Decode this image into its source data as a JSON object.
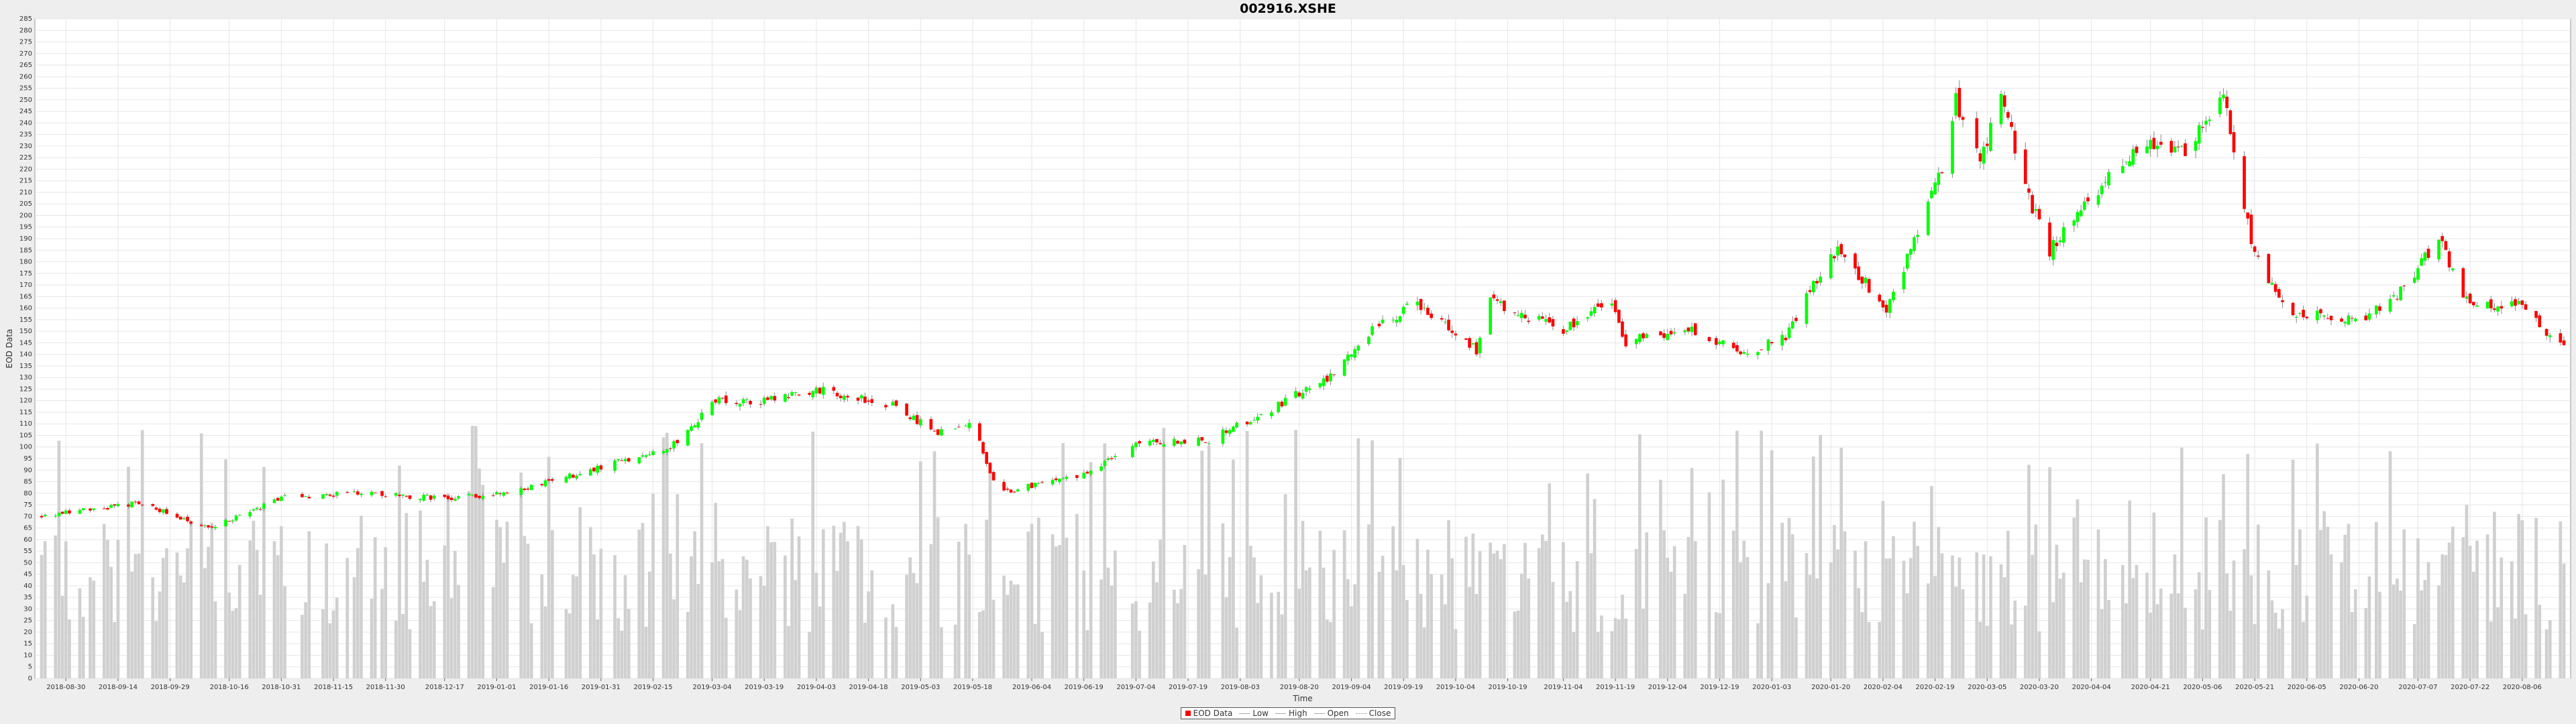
{
  "chart_data": {
    "type": "candlestick",
    "title": "002916.XSHE",
    "xlabel": "Time",
    "ylabel": "EOD Data",
    "ylim": [
      0,
      285
    ],
    "y_tick_step": 5,
    "volume_bars": "grey bars, share EOD Data axis",
    "grid": true,
    "legend_position": "bottom-center",
    "colors": {
      "up": "#00ff00",
      "down": "#ff0000",
      "volume": "#d0d0d0",
      "grid": "#e6e6e6",
      "plot_bg": "#ffffff"
    },
    "x_tick_labels": [
      "2018-08-30",
      "2018-09-14",
      "2018-09-29",
      "2018-10-16",
      "2018-10-31",
      "2018-11-15",
      "2018-11-30",
      "2018-12-17",
      "2019-01-01",
      "2019-01-16",
      "2019-01-31",
      "2019-02-15",
      "2019-03-04",
      "2019-03-19",
      "2019-04-03",
      "2019-04-18",
      "2019-05-03",
      "2019-05-18",
      "2019-06-04",
      "2019-06-19",
      "2019-07-04",
      "2019-07-19",
      "2019-08-03",
      "2019-08-20",
      "2019-09-04",
      "2019-09-19",
      "2019-10-04",
      "2019-10-19",
      "2019-11-04",
      "2019-11-19",
      "2019-12-04",
      "2019-12-19",
      "2020-01-03",
      "2020-01-20",
      "2020-02-04",
      "2020-02-19",
      "2020-03-05",
      "2020-03-20",
      "2020-04-04",
      "2020-04-21",
      "2020-05-06",
      "2020-05-21",
      "2020-06-05",
      "2020-06-20",
      "2020-07-07",
      "2020-07-22",
      "2020-08-06"
    ],
    "date_range": [
      "2018-08-23",
      "2020-08-18"
    ],
    "key_close_points": [
      {
        "x": "2018-08-23",
        "y": 70
      },
      {
        "x": "2018-09-20",
        "y": 76
      },
      {
        "x": "2018-10-10",
        "y": 65
      },
      {
        "x": "2018-11-01",
        "y": 78
      },
      {
        "x": "2018-11-20",
        "y": 80
      },
      {
        "x": "2018-12-17",
        "y": 78
      },
      {
        "x": "2019-01-05",
        "y": 80
      },
      {
        "x": "2019-02-01",
        "y": 92
      },
      {
        "x": "2019-02-20",
        "y": 100
      },
      {
        "x": "2019-03-05",
        "y": 120
      },
      {
        "x": "2019-03-20",
        "y": 120
      },
      {
        "x": "2019-04-03",
        "y": 125
      },
      {
        "x": "2019-04-25",
        "y": 118
      },
      {
        "x": "2019-05-08",
        "y": 106
      },
      {
        "x": "2019-05-18",
        "y": 112
      },
      {
        "x": "2019-05-25",
        "y": 80
      },
      {
        "x": "2019-06-19",
        "y": 88
      },
      {
        "x": "2019-07-04",
        "y": 102
      },
      {
        "x": "2019-07-25",
        "y": 103
      },
      {
        "x": "2019-08-10",
        "y": 115
      },
      {
        "x": "2019-08-28",
        "y": 130
      },
      {
        "x": "2019-09-10",
        "y": 150
      },
      {
        "x": "2019-09-22",
        "y": 162
      },
      {
        "x": "2019-10-02",
        "y": 152
      },
      {
        "x": "2019-10-10",
        "y": 142
      },
      {
        "x": "2019-10-14",
        "y": 163
      },
      {
        "x": "2019-11-04",
        "y": 150
      },
      {
        "x": "2019-11-18",
        "y": 163
      },
      {
        "x": "2019-11-22",
        "y": 145
      },
      {
        "x": "2019-12-10",
        "y": 152
      },
      {
        "x": "2019-12-25",
        "y": 140
      },
      {
        "x": "2020-01-07",
        "y": 148
      },
      {
        "x": "2020-01-16",
        "y": 172
      },
      {
        "x": "2020-01-22",
        "y": 185
      },
      {
        "x": "2020-02-05",
        "y": 160
      },
      {
        "x": "2020-02-14",
        "y": 192
      },
      {
        "x": "2020-02-21",
        "y": 220
      },
      {
        "x": "2020-02-25",
        "y": 250
      },
      {
        "x": "2020-03-03",
        "y": 222
      },
      {
        "x": "2020-03-09",
        "y": 255
      },
      {
        "x": "2020-03-15",
        "y": 215
      },
      {
        "x": "2020-03-23",
        "y": 185
      },
      {
        "x": "2020-04-03",
        "y": 205
      },
      {
        "x": "2020-04-17",
        "y": 230
      },
      {
        "x": "2020-05-01",
        "y": 228
      },
      {
        "x": "2020-05-08",
        "y": 245
      },
      {
        "x": "2020-05-12",
        "y": 252
      },
      {
        "x": "2020-05-21",
        "y": 182
      },
      {
        "x": "2020-06-01",
        "y": 158
      },
      {
        "x": "2020-06-20",
        "y": 155
      },
      {
        "x": "2020-07-01",
        "y": 165
      },
      {
        "x": "2020-07-13",
        "y": 190
      },
      {
        "x": "2020-07-22",
        "y": 160
      },
      {
        "x": "2020-08-05",
        "y": 162
      },
      {
        "x": "2020-08-18",
        "y": 142
      }
    ],
    "volume_range": [
      20,
      110
    ],
    "legend": [
      "EOD Data",
      "Low",
      "High",
      "Open",
      "Close"
    ]
  }
}
